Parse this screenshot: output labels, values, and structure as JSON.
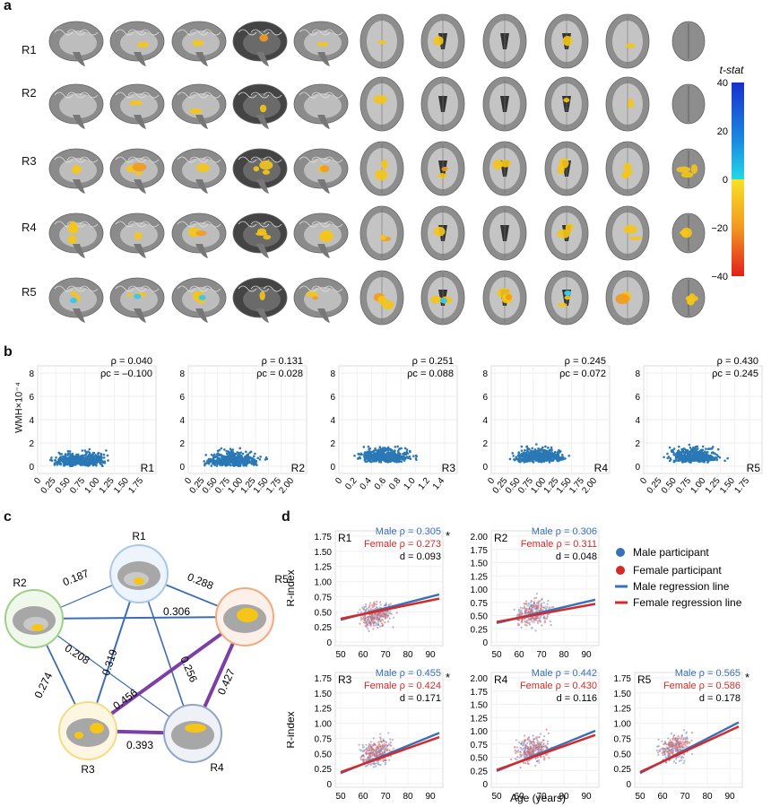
{
  "panel_a": {
    "letter": "a",
    "rows": [
      "R1",
      "R2",
      "R3",
      "R4",
      "R5"
    ],
    "colorbar": {
      "title": "t-stat",
      "ticks": [
        "40",
        "20",
        "0",
        "−20",
        "−40"
      ]
    }
  },
  "panel_b": {
    "letter": "b",
    "ylabel": "WMH×10⁻⁴",
    "yticks": [
      "0",
      "2",
      "4",
      "6",
      "8"
    ],
    "plots": [
      {
        "region": "R1",
        "rho": "ρ = 0.040",
        "rho_c": "ρc = –0.100",
        "xticks": [
          "0",
          "0.25",
          "0.50",
          "0.75",
          "1.00",
          "1.25",
          "1.50",
          "1.75"
        ]
      },
      {
        "region": "R2",
        "rho": "ρ = 0.131",
        "rho_c": "ρc = 0.028",
        "xticks": [
          "0",
          "0.25",
          "0.50",
          "0.75",
          "1.00",
          "1.25",
          "1.50",
          "1.75",
          "2.00"
        ]
      },
      {
        "region": "R3",
        "rho": "ρ = 0.251",
        "rho_c": "ρc = 0.088",
        "xticks": [
          "0",
          "0.2",
          "0.4",
          "0.6",
          "0.8",
          "1.0",
          "1.2",
          "1.4"
        ]
      },
      {
        "region": "R4",
        "rho": "ρ = 0.245",
        "rho_c": "ρc = 0.072",
        "xticks": [
          "0",
          "0.25",
          "0.50",
          "0.75",
          "1.00",
          "1.25",
          "1.50",
          "1.75",
          "2.00"
        ]
      },
      {
        "region": "R5",
        "rho": "ρ = 0.430",
        "rho_c": "ρc = 0.245",
        "xticks": [
          "0",
          "0.25",
          "0.50",
          "0.75",
          "1.00",
          "1.25",
          "1.50",
          "1.75"
        ]
      }
    ]
  },
  "panel_c": {
    "letter": "c",
    "nodes": [
      "R1",
      "R2",
      "R3",
      "R4",
      "R5"
    ],
    "edges": [
      {
        "from": "R1",
        "to": "R2",
        "label": "0.187"
      },
      {
        "from": "R1",
        "to": "R5",
        "label": "0.288"
      },
      {
        "from": "R1",
        "to": "R3",
        "label": "0.319"
      },
      {
        "from": "R1",
        "to": "R4",
        "label": "0.256"
      },
      {
        "from": "R2",
        "to": "R5",
        "label": "0.306"
      },
      {
        "from": "R2",
        "to": "R4",
        "label": "0.208"
      },
      {
        "from": "R2",
        "to": "R3",
        "label": "0.274"
      },
      {
        "from": "R3",
        "to": "R5",
        "label": "0.456"
      },
      {
        "from": "R5",
        "to": "R4",
        "label": "0.427"
      },
      {
        "from": "R3",
        "to": "R4",
        "label": "0.393"
      }
    ]
  },
  "panel_d": {
    "letter": "d",
    "ylabel": "R-index",
    "xlabel": "Age (years)",
    "xticks": [
      "50",
      "60",
      "70",
      "80",
      "90"
    ],
    "legend": {
      "male_participant": "Male participant",
      "female_participant": "Female participant",
      "male_line": "Male regression line",
      "female_line": "Female regression line"
    },
    "plots": [
      {
        "region": "R1",
        "male": "Male ρ = 0.305",
        "female": "Female ρ = 0.273",
        "d": "d = 0.093",
        "star": "*",
        "yticks": [
          "0",
          "0.25",
          "0.50",
          "0.75",
          "1.00",
          "1.25",
          "1.50",
          "1.75"
        ]
      },
      {
        "region": "R2",
        "male": "Male ρ = 0.306",
        "female": "Female ρ = 0.311",
        "d": "d = 0.048",
        "star": "",
        "yticks": [
          "0",
          "0.25",
          "0.50",
          "0.75",
          "1.00",
          "1.25",
          "1.50",
          "1.75",
          "2.00"
        ]
      },
      {
        "region": "R3",
        "male": "Male ρ = 0.455",
        "female": "Female ρ = 0.424",
        "d": "d = 0.171",
        "star": "*",
        "yticks": [
          "0",
          "0.25",
          "0.50",
          "0.75",
          "1.00",
          "1.25",
          "1.50",
          "1.75"
        ]
      },
      {
        "region": "R4",
        "male": "Male ρ = 0.442",
        "female": "Female ρ = 0.430",
        "d": "d = 0.116",
        "star": "",
        "yticks": [
          "0",
          "0.25",
          "0.50",
          "0.75",
          "1.00",
          "1.25",
          "1.50",
          "1.75",
          "2.00"
        ]
      },
      {
        "region": "R5",
        "male": "Male ρ = 0.565",
        "female": "Female ρ = 0.586",
        "d": "d = 0.178",
        "star": "*",
        "yticks": [
          "0",
          "0.25",
          "0.50",
          "0.75",
          "1.00",
          "1.25",
          "1.50",
          "1.75"
        ]
      }
    ]
  },
  "colors": {
    "scatter_blue": "#2a78b5",
    "male_blue": "#3a70b8",
    "female_red": "#d42a2a",
    "highlight_yellow": "#f5c518",
    "purple_edge": "#7b3fa6",
    "edge_blue": "#3b6db0",
    "node_R1": "#a9c8ea",
    "node_R2": "#9fd08a",
    "node_R3": "#f3dc88",
    "node_R4": "#93a6c4",
    "node_R5": "#f2aa80"
  }
}
